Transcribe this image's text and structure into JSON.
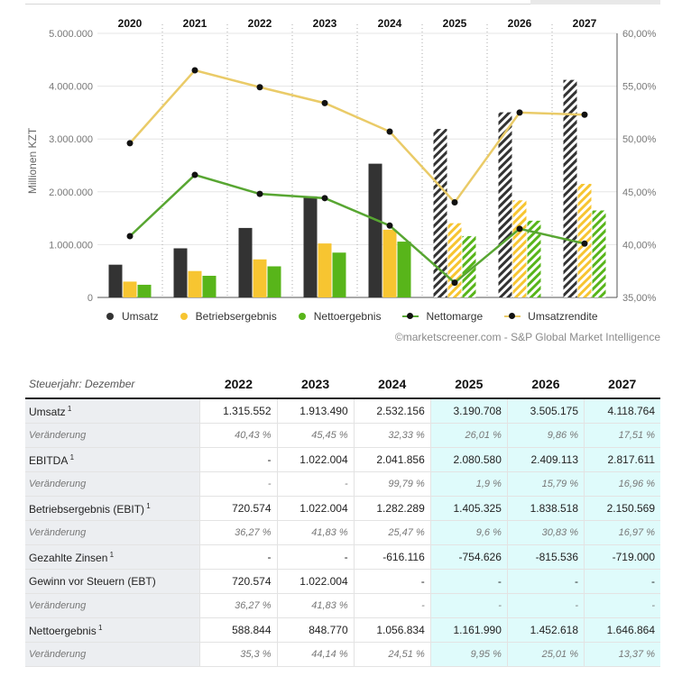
{
  "chart_data": {
    "type": "bar",
    "categories": [
      "2020",
      "2021",
      "2022",
      "2023",
      "2024",
      "2025",
      "2026",
      "2027"
    ],
    "estimate_from_index": 5,
    "series": [
      {
        "name": "Umsatz",
        "kind": "bar",
        "color": "#333333",
        "values": [
          620000,
          930000,
          1315552,
          1913490,
          2532156,
          3190708,
          3505175,
          4118764
        ]
      },
      {
        "name": "Betriebsergebnis",
        "kind": "bar",
        "color": "#f7c531",
        "values": [
          300000,
          500000,
          720574,
          1022004,
          1282289,
          1405325,
          1838518,
          2150569
        ]
      },
      {
        "name": "Nettoergebnis",
        "kind": "bar",
        "color": "#58b51a",
        "values": [
          240000,
          410000,
          588844,
          848770,
          1056834,
          1161990,
          1452618,
          1646864
        ]
      },
      {
        "name": "Nettomarge",
        "kind": "line",
        "axis": "right",
        "color": "#58a632",
        "values": [
          40.8,
          46.6,
          44.8,
          44.4,
          41.8,
          36.4,
          41.5,
          40.1
        ]
      },
      {
        "name": "Umsatzrendite",
        "kind": "line",
        "axis": "right",
        "color": "#eacb68",
        "values": [
          49.6,
          56.5,
          54.9,
          53.4,
          50.7,
          44.0,
          52.5,
          52.3
        ]
      }
    ],
    "ylabel": "Millionen KZT",
    "yticks": [
      "5.000.000",
      "4.000.000",
      "3.000.000",
      "2.000.000",
      "1.000.000",
      "0"
    ],
    "ylim": [
      0,
      5000000
    ],
    "y2ticks": [
      "60,00%",
      "55,00%",
      "50,00%",
      "45,00%",
      "40,00%",
      "35,00%"
    ],
    "y2lim": [
      35,
      60
    ],
    "legend_position": "bottom",
    "credit": "©marketscreener.com - S&P Global Market Intelligence"
  },
  "legend": {
    "umsatz": "Umsatz",
    "betriebsergebnis": "Betriebsergebnis",
    "nettoergebnis": "Nettoergebnis",
    "nettomarge": "Nettomarge",
    "umsatzrendite": "Umsatzrendite",
    "colors": {
      "umsatz": "#333333",
      "betriebsergebnis": "#f7c531",
      "nettoergebnis": "#58b51a",
      "nettomarge": "#58a632",
      "umsatzrendite": "#eacb68"
    }
  },
  "table": {
    "corner": "Steuerjahr: Dezember",
    "years": [
      "2022",
      "2023",
      "2024",
      "2025",
      "2026",
      "2027"
    ],
    "estimate_from_index": 3,
    "rows": [
      {
        "label": "Umsatz",
        "sup": "1",
        "kind": "main",
        "values": [
          "1.315.552",
          "1.913.490",
          "2.532.156",
          "3.190.708",
          "3.505.175",
          "4.118.764"
        ]
      },
      {
        "label": "Veränderung",
        "sup": "",
        "kind": "var",
        "values": [
          "40,43 %",
          "45,45 %",
          "32,33 %",
          "26,01 %",
          "9,86 %",
          "17,51 %"
        ]
      },
      {
        "label": "EBITDA",
        "sup": "1",
        "kind": "main",
        "values": [
          "-",
          "1.022.004",
          "2.041.856",
          "2.080.580",
          "2.409.113",
          "2.817.611"
        ]
      },
      {
        "label": "Veränderung",
        "sup": "",
        "kind": "var",
        "values": [
          "-",
          "-",
          "99,79 %",
          "1,9 %",
          "15,79 %",
          "16,96 %"
        ]
      },
      {
        "label": "Betriebsergebnis (EBIT)",
        "sup": "1",
        "kind": "main",
        "values": [
          "720.574",
          "1.022.004",
          "1.282.289",
          "1.405.325",
          "1.838.518",
          "2.150.569"
        ]
      },
      {
        "label": "Veränderung",
        "sup": "",
        "kind": "var",
        "values": [
          "36,27 %",
          "41,83 %",
          "25,47 %",
          "9,6 %",
          "30,83 %",
          "16,97 %"
        ]
      },
      {
        "label": "Gezahlte Zinsen",
        "sup": "1",
        "kind": "main",
        "values": [
          "-",
          "-",
          "-616.116",
          "-754.626",
          "-815.536",
          "-719.000"
        ]
      },
      {
        "label": "Gewinn vor Steuern (EBT)",
        "sup": "",
        "kind": "main",
        "values": [
          "720.574",
          "1.022.004",
          "-",
          "-",
          "-",
          "-"
        ]
      },
      {
        "label": "Veränderung",
        "sup": "",
        "kind": "var",
        "values": [
          "36,27 %",
          "41,83 %",
          "-",
          "-",
          "-",
          "-"
        ]
      },
      {
        "label": "Nettoergebnis",
        "sup": "1",
        "kind": "main",
        "values": [
          "588.844",
          "848.770",
          "1.056.834",
          "1.161.990",
          "1.452.618",
          "1.646.864"
        ]
      },
      {
        "label": "Veränderung",
        "sup": "",
        "kind": "var",
        "values": [
          "35,3 %",
          "44,14 %",
          "24,51 %",
          "9,95 %",
          "25,01 %",
          "13,37 %"
        ]
      }
    ]
  }
}
